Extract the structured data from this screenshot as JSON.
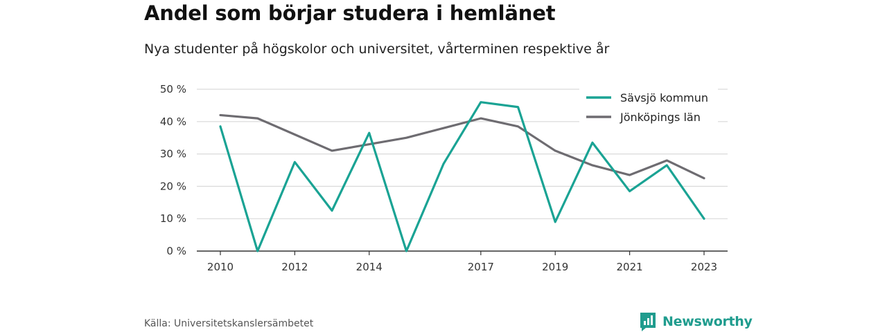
{
  "title": "Andel som börjar studera i hemlänet",
  "subtitle": "Nya studenter på högskolor och universitet, vårterminen respektive år",
  "source": "Källa: Universitetskanslersämbetet",
  "brand": {
    "name": "Newsworthy",
    "icon": "newsworthy-logo-icon",
    "color": "#1f9c8e"
  },
  "chart_data": {
    "type": "line",
    "title": "Andel som börjar studera i hemlänet",
    "x": [
      2010,
      2011,
      2012,
      2013,
      2014,
      2015,
      2016,
      2017,
      2018,
      2019,
      2020,
      2021,
      2022,
      2023
    ],
    "x_tick_labels": [
      "2010",
      "2012",
      "2014",
      "2017",
      "2019",
      "2021",
      "2023"
    ],
    "y_tick_labels": [
      "0 %",
      "10 %",
      "20 %",
      "30 %",
      "40 %",
      "50 %"
    ],
    "ylim": [
      0,
      50
    ],
    "grid": true,
    "legend_position": "top-right",
    "series": [
      {
        "name": "Sävsjö kommun",
        "color": "#1aa394",
        "values": [
          38.5,
          0,
          27.5,
          12.5,
          36.5,
          0,
          27,
          46,
          44.5,
          9,
          33.5,
          18.5,
          26.5,
          10
        ]
      },
      {
        "name": "Jönköpings län",
        "color": "#6e6c71",
        "values": [
          42,
          41,
          36,
          31,
          33,
          35,
          38,
          41,
          38.5,
          31,
          26.5,
          23.5,
          28,
          22.5
        ]
      }
    ]
  }
}
